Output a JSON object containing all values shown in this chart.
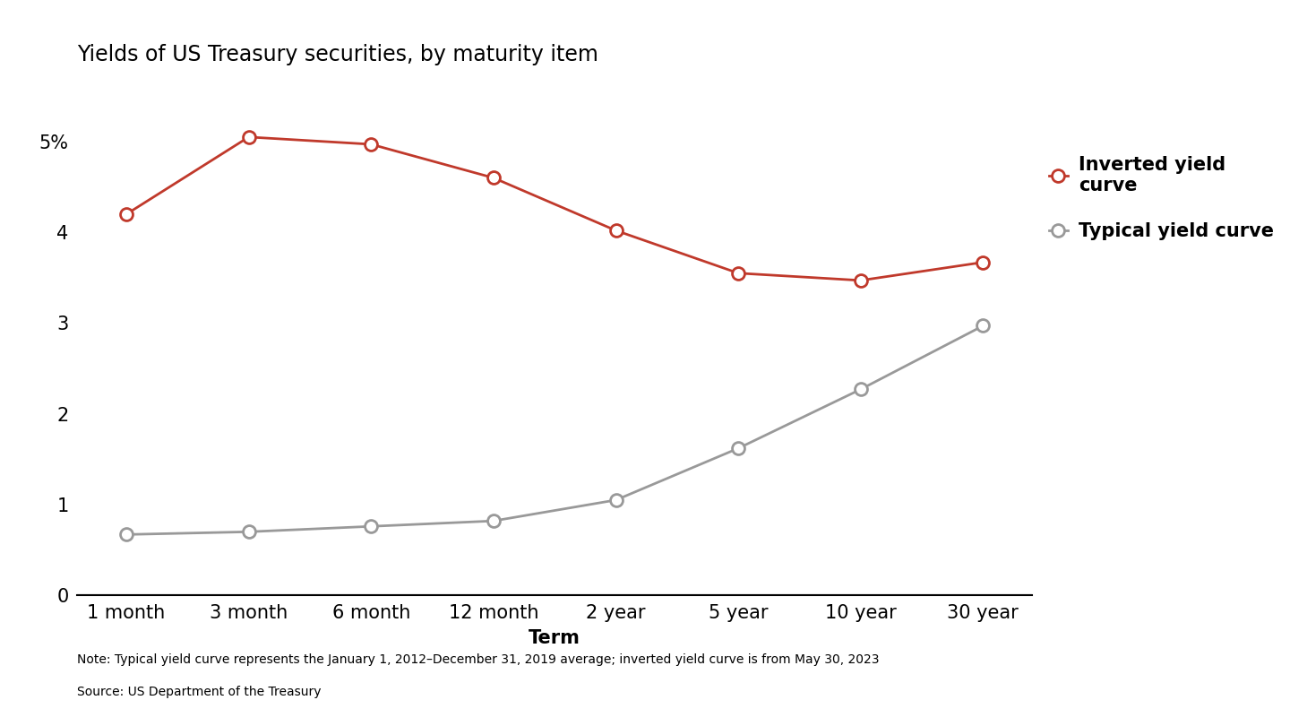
{
  "title": "Yields of US Treasury securities, by maturity item",
  "xlabel": "Term",
  "categories": [
    "1 month",
    "3 month",
    "6 month",
    "12 month",
    "2 year",
    "5 year",
    "10 year",
    "30 year"
  ],
  "inverted_values": [
    4.2,
    5.05,
    4.97,
    4.6,
    4.02,
    3.55,
    3.47,
    3.67
  ],
  "typical_values": [
    0.67,
    0.7,
    0.76,
    0.82,
    1.05,
    1.62,
    2.27,
    2.97
  ],
  "inverted_color": "#c0392b",
  "typical_color": "#999999",
  "background_color": "#ffffff",
  "ylim": [
    0,
    5.6
  ],
  "ytick_values": [
    0,
    1,
    2,
    3,
    4,
    5
  ],
  "ytick_labels": [
    "0",
    "1",
    "2",
    "3",
    "4",
    "5%"
  ],
  "title_fontsize": 17,
  "tick_fontsize": 15,
  "legend_fontsize": 15,
  "note_text": "Note: Typical yield curve represents the January 1, 2012–December 31, 2019 average; inverted yield curve is from May 30, 2023",
  "source_text": "Source: US Department of the Treasury",
  "marker_size": 10,
  "line_width": 2.0
}
